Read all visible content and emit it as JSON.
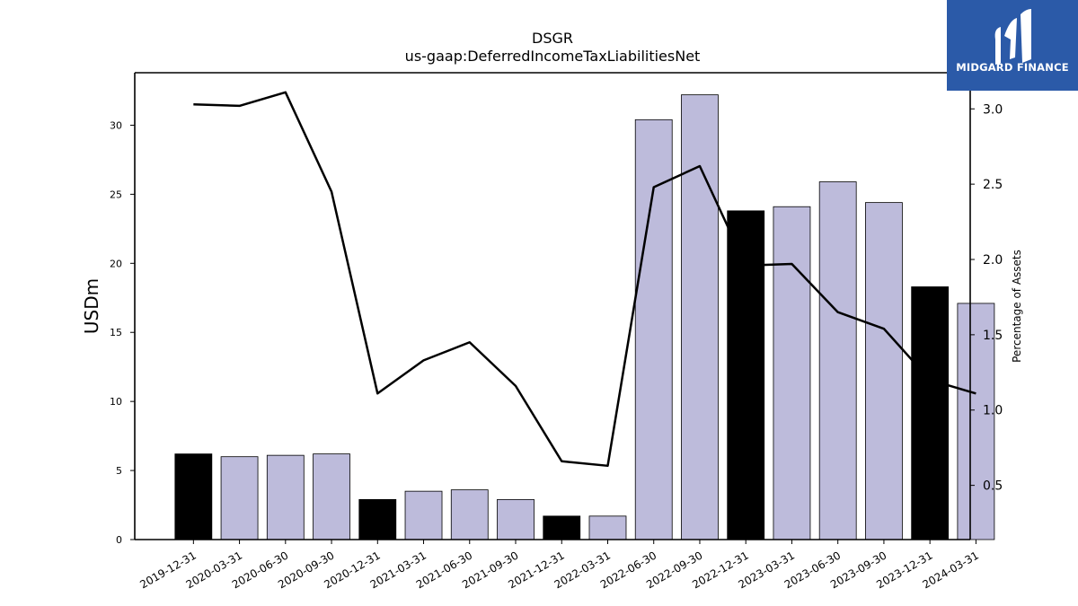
{
  "chart_data": {
    "type": "bar",
    "title": "DSGR",
    "subtitle": "us-gaap:DeferredIncomeTaxLiabilitiesNet",
    "ylabel": "USDm",
    "y2label": "Percentage of Assets",
    "ylim": [
      0,
      33.8
    ],
    "y2lim": [
      0.14,
      3.24
    ],
    "yticks": [
      0,
      5,
      10,
      15,
      20,
      25,
      30
    ],
    "y2ticks": [
      0.5,
      1.0,
      1.5,
      2.0,
      2.5,
      3.0
    ],
    "categories": [
      "2019-12-31",
      "2020-03-31",
      "2020-06-30",
      "2020-09-30",
      "2020-12-31",
      "2021-03-31",
      "2021-06-30",
      "2021-09-30",
      "2021-12-31",
      "2022-03-31",
      "2022-06-30",
      "2022-09-30",
      "2022-12-31",
      "2023-03-31",
      "2023-06-30",
      "2023-09-30",
      "2023-12-31",
      "2024-03-31"
    ],
    "series": [
      {
        "type": "bar",
        "values": [
          6.2,
          6.0,
          6.1,
          6.2,
          2.9,
          3.5,
          3.6,
          2.9,
          1.7,
          1.7,
          30.4,
          32.2,
          23.8,
          24.1,
          25.9,
          24.4,
          18.3,
          17.1
        ],
        "highlight": [
          true,
          false,
          false,
          false,
          true,
          false,
          false,
          false,
          true,
          false,
          false,
          false,
          true,
          false,
          false,
          false,
          true,
          false
        ],
        "color": "#bdbbdb",
        "highlight_color": "#000000"
      },
      {
        "type": "line",
        "axis": "right",
        "values": [
          3.03,
          3.02,
          3.11,
          2.45,
          1.11,
          1.33,
          1.45,
          1.16,
          0.66,
          0.63,
          2.48,
          2.62,
          1.96,
          1.97,
          1.65,
          1.54,
          1.2,
          1.11
        ],
        "color": "#000000"
      }
    ]
  },
  "logo": {
    "text": "MIDGARD FINANCE",
    "background": "#2b5aa8"
  }
}
